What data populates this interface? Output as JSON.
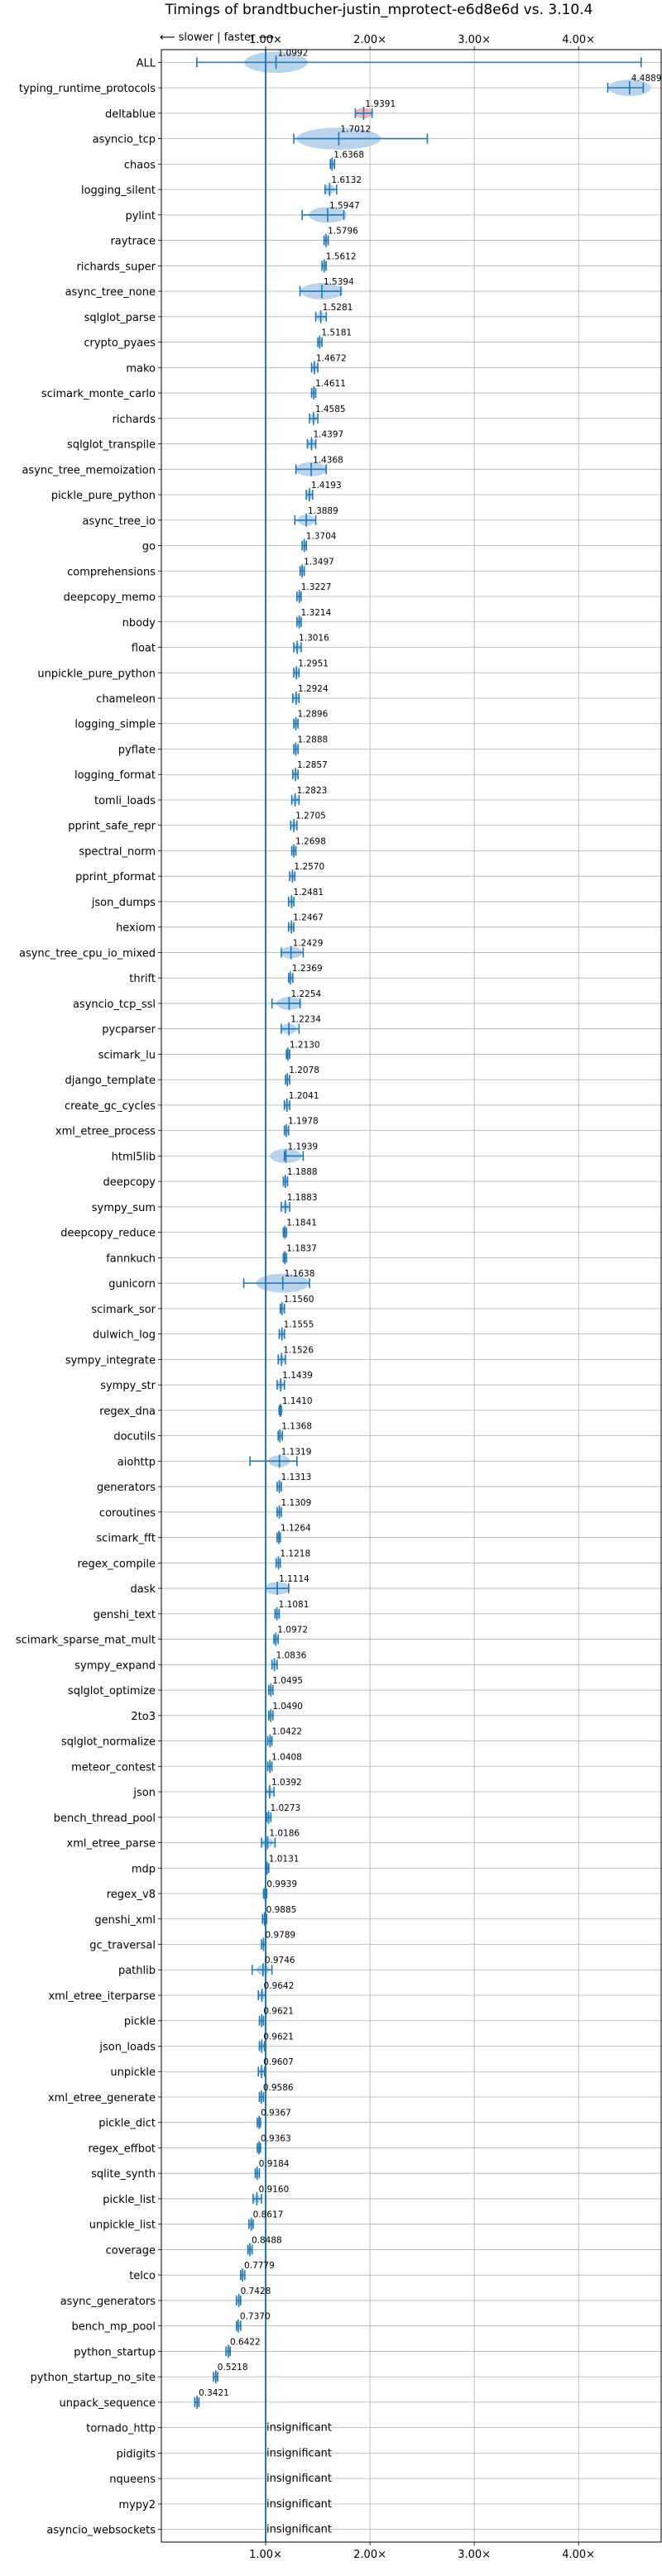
{
  "chart_data": {
    "type": "violin",
    "title": "Timings of brandtbucher-justin_mprotect-e6d8e6d vs. 3.10.4",
    "direction_note": "⟵ slower | faster ⟶",
    "xlim": [
      0.0,
      4.8
    ],
    "reference_line": 1.0,
    "grid": true,
    "x_ticks": [
      {
        "value": 1.0,
        "label": "1.00×"
      },
      {
        "value": 2.0,
        "label": "2.00×"
      },
      {
        "value": 3.0,
        "label": "3.00×"
      },
      {
        "value": 4.0,
        "label": "4.00×"
      }
    ],
    "insignificant_label": "insignificant",
    "benchmarks": [
      {
        "name": "ALL",
        "value": 1.0992,
        "label": "1.0992",
        "min": 0.34,
        "max": 4.6,
        "spread": 0.3,
        "color": "#aecde8"
      },
      {
        "name": "typing_runtime_protocols",
        "value": 4.4889,
        "label": "4.4889",
        "min": 4.28,
        "max": 4.62,
        "spread": 0.2,
        "color": "#aecde8"
      },
      {
        "name": "deltablue",
        "value": 1.9391,
        "label": "1.9391",
        "min": 1.86,
        "max": 2.02,
        "spread": 0.08,
        "color": "#f5a5a5"
      },
      {
        "name": "asyncio_tcp",
        "value": 1.7012,
        "label": "1.7012",
        "min": 1.27,
        "max": 2.55,
        "spread": 0.4,
        "color": "#aecde8"
      },
      {
        "name": "chaos",
        "value": 1.6368,
        "label": "1.6368",
        "min": 1.62,
        "max": 1.66,
        "spread": 0.02,
        "color": "#aecde8"
      },
      {
        "name": "logging_silent",
        "value": 1.6132,
        "label": "1.6132",
        "min": 1.57,
        "max": 1.68,
        "spread": 0.05,
        "color": "#aecde8"
      },
      {
        "name": "pylint",
        "value": 1.5947,
        "label": "1.5947",
        "min": 1.35,
        "max": 1.75,
        "spread": 0.18,
        "color": "#aecde8"
      },
      {
        "name": "raytrace",
        "value": 1.5796,
        "label": "1.5796",
        "min": 1.56,
        "max": 1.6,
        "spread": 0.02,
        "color": "#aecde8"
      },
      {
        "name": "richards_super",
        "value": 1.5612,
        "label": "1.5612",
        "min": 1.54,
        "max": 1.58,
        "spread": 0.02,
        "color": "#aecde8"
      },
      {
        "name": "async_tree_none",
        "value": 1.5394,
        "label": "1.5394",
        "min": 1.33,
        "max": 1.72,
        "spread": 0.2,
        "color": "#aecde8"
      },
      {
        "name": "sqlglot_parse",
        "value": 1.5281,
        "label": "1.5281",
        "min": 1.48,
        "max": 1.58,
        "spread": 0.04,
        "color": "#aecde8"
      },
      {
        "name": "crypto_pyaes",
        "value": 1.5181,
        "label": "1.5181",
        "min": 1.5,
        "max": 1.54,
        "spread": 0.02,
        "color": "#aecde8"
      },
      {
        "name": "mako",
        "value": 1.4672,
        "label": "1.4672",
        "min": 1.44,
        "max": 1.5,
        "spread": 0.03,
        "color": "#aecde8"
      },
      {
        "name": "scimark_monte_carlo",
        "value": 1.4611,
        "label": "1.4611",
        "min": 1.44,
        "max": 1.48,
        "spread": 0.02,
        "color": "#aecde8"
      },
      {
        "name": "richards",
        "value": 1.4585,
        "label": "1.4585",
        "min": 1.42,
        "max": 1.5,
        "spread": 0.03,
        "color": "#aecde8"
      },
      {
        "name": "sqlglot_transpile",
        "value": 1.4397,
        "label": "1.4397",
        "min": 1.4,
        "max": 1.48,
        "spread": 0.04,
        "color": "#aecde8"
      },
      {
        "name": "async_tree_memoization",
        "value": 1.4368,
        "label": "1.4368",
        "min": 1.29,
        "max": 1.58,
        "spread": 0.15,
        "color": "#aecde8"
      },
      {
        "name": "pickle_pure_python",
        "value": 1.4193,
        "label": "1.4193",
        "min": 1.39,
        "max": 1.45,
        "spread": 0.03,
        "color": "#aecde8"
      },
      {
        "name": "async_tree_io",
        "value": 1.3889,
        "label": "1.3889",
        "min": 1.28,
        "max": 1.48,
        "spread": 0.08,
        "color": "#aecde8"
      },
      {
        "name": "go",
        "value": 1.3704,
        "label": "1.3704",
        "min": 1.35,
        "max": 1.39,
        "spread": 0.02,
        "color": "#aecde8"
      },
      {
        "name": "comprehensions",
        "value": 1.3497,
        "label": "1.3497",
        "min": 1.33,
        "max": 1.37,
        "spread": 0.02,
        "color": "#aecde8"
      },
      {
        "name": "deepcopy_memo",
        "value": 1.3227,
        "label": "1.3227",
        "min": 1.3,
        "max": 1.34,
        "spread": 0.02,
        "color": "#aecde8"
      },
      {
        "name": "nbody",
        "value": 1.3214,
        "label": "1.3214",
        "min": 1.3,
        "max": 1.34,
        "spread": 0.02,
        "color": "#aecde8"
      },
      {
        "name": "float",
        "value": 1.3016,
        "label": "1.3016",
        "min": 1.27,
        "max": 1.34,
        "spread": 0.03,
        "color": "#aecde8"
      },
      {
        "name": "unpickle_pure_python",
        "value": 1.2951,
        "label": "1.2951",
        "min": 1.27,
        "max": 1.32,
        "spread": 0.02,
        "color": "#aecde8"
      },
      {
        "name": "chameleon",
        "value": 1.2924,
        "label": "1.2924",
        "min": 1.26,
        "max": 1.32,
        "spread": 0.03,
        "color": "#aecde8"
      },
      {
        "name": "logging_simple",
        "value": 1.2896,
        "label": "1.2896",
        "min": 1.27,
        "max": 1.31,
        "spread": 0.02,
        "color": "#aecde8"
      },
      {
        "name": "pyflate",
        "value": 1.2888,
        "label": "1.2888",
        "min": 1.27,
        "max": 1.31,
        "spread": 0.02,
        "color": "#aecde8"
      },
      {
        "name": "logging_format",
        "value": 1.2857,
        "label": "1.2857",
        "min": 1.26,
        "max": 1.31,
        "spread": 0.02,
        "color": "#aecde8"
      },
      {
        "name": "tomli_loads",
        "value": 1.2823,
        "label": "1.2823",
        "min": 1.25,
        "max": 1.32,
        "spread": 0.03,
        "color": "#aecde8"
      },
      {
        "name": "pprint_safe_repr",
        "value": 1.2705,
        "label": "1.2705",
        "min": 1.24,
        "max": 1.3,
        "spread": 0.03,
        "color": "#aecde8"
      },
      {
        "name": "spectral_norm",
        "value": 1.2698,
        "label": "1.2698",
        "min": 1.25,
        "max": 1.29,
        "spread": 0.02,
        "color": "#aecde8"
      },
      {
        "name": "pprint_pformat",
        "value": 1.257,
        "label": "1.2570",
        "min": 1.23,
        "max": 1.28,
        "spread": 0.02,
        "color": "#aecde8"
      },
      {
        "name": "json_dumps",
        "value": 1.2481,
        "label": "1.2481",
        "min": 1.22,
        "max": 1.27,
        "spread": 0.02,
        "color": "#aecde8"
      },
      {
        "name": "hexiom",
        "value": 1.2467,
        "label": "1.2467",
        "min": 1.22,
        "max": 1.27,
        "spread": 0.02,
        "color": "#aecde8"
      },
      {
        "name": "async_tree_cpu_io_mixed",
        "value": 1.2429,
        "label": "1.2429",
        "min": 1.15,
        "max": 1.36,
        "spread": 0.1,
        "color": "#aecde8"
      },
      {
        "name": "thrift",
        "value": 1.2369,
        "label": "1.2369",
        "min": 1.22,
        "max": 1.26,
        "spread": 0.02,
        "color": "#aecde8"
      },
      {
        "name": "asyncio_tcp_ssl",
        "value": 1.2254,
        "label": "1.2254",
        "min": 1.06,
        "max": 1.33,
        "spread": 0.12,
        "color": "#aecde8"
      },
      {
        "name": "pycparser",
        "value": 1.2234,
        "label": "1.2234",
        "min": 1.15,
        "max": 1.32,
        "spread": 0.07,
        "color": "#aecde8"
      },
      {
        "name": "scimark_lu",
        "value": 1.213,
        "label": "1.2130",
        "min": 1.2,
        "max": 1.23,
        "spread": 0.02,
        "color": "#aecde8"
      },
      {
        "name": "django_template",
        "value": 1.2078,
        "label": "1.2078",
        "min": 1.19,
        "max": 1.23,
        "spread": 0.02,
        "color": "#aecde8"
      },
      {
        "name": "create_gc_cycles",
        "value": 1.2041,
        "label": "1.2041",
        "min": 1.18,
        "max": 1.23,
        "spread": 0.02,
        "color": "#aecde8"
      },
      {
        "name": "xml_etree_process",
        "value": 1.1978,
        "label": "1.1978",
        "min": 1.18,
        "max": 1.22,
        "spread": 0.02,
        "color": "#aecde8"
      },
      {
        "name": "html5lib",
        "value": 1.1939,
        "label": "1.1939",
        "min": 1.18,
        "max": 1.36,
        "spread": 0.15,
        "color": "#aecde8"
      },
      {
        "name": "deepcopy",
        "value": 1.1888,
        "label": "1.1888",
        "min": 1.17,
        "max": 1.21,
        "spread": 0.02,
        "color": "#aecde8"
      },
      {
        "name": "sympy_sum",
        "value": 1.1883,
        "label": "1.1883",
        "min": 1.15,
        "max": 1.23,
        "spread": 0.03,
        "color": "#aecde8"
      },
      {
        "name": "deepcopy_reduce",
        "value": 1.1841,
        "label": "1.1841",
        "min": 1.17,
        "max": 1.2,
        "spread": 0.02,
        "color": "#aecde8"
      },
      {
        "name": "fannkuch",
        "value": 1.1837,
        "label": "1.1837",
        "min": 1.17,
        "max": 1.2,
        "spread": 0.02,
        "color": "#aecde8"
      },
      {
        "name": "gunicorn",
        "value": 1.1638,
        "label": "1.1638",
        "min": 0.79,
        "max": 1.42,
        "spread": 0.25,
        "color": "#aecde8"
      },
      {
        "name": "scimark_sor",
        "value": 1.156,
        "label": "1.1560",
        "min": 1.14,
        "max": 1.18,
        "spread": 0.02,
        "color": "#aecde8"
      },
      {
        "name": "dulwich_log",
        "value": 1.1555,
        "label": "1.1555",
        "min": 1.13,
        "max": 1.18,
        "spread": 0.02,
        "color": "#aecde8"
      },
      {
        "name": "sympy_integrate",
        "value": 1.1526,
        "label": "1.1526",
        "min": 1.12,
        "max": 1.19,
        "spread": 0.03,
        "color": "#aecde8"
      },
      {
        "name": "sympy_str",
        "value": 1.1439,
        "label": "1.1439",
        "min": 1.11,
        "max": 1.18,
        "spread": 0.03,
        "color": "#aecde8"
      },
      {
        "name": "regex_dna",
        "value": 1.141,
        "label": "1.1410",
        "min": 1.13,
        "max": 1.15,
        "spread": 0.02,
        "color": "#aecde8"
      },
      {
        "name": "docutils",
        "value": 1.1368,
        "label": "1.1368",
        "min": 1.12,
        "max": 1.16,
        "spread": 0.02,
        "color": "#aecde8"
      },
      {
        "name": "aiohttp",
        "value": 1.1319,
        "label": "1.1319",
        "min": 0.85,
        "max": 1.3,
        "spread": 0.1,
        "color": "#aecde8"
      },
      {
        "name": "generators",
        "value": 1.1313,
        "label": "1.1313",
        "min": 1.11,
        "max": 1.15,
        "spread": 0.02,
        "color": "#aecde8"
      },
      {
        "name": "coroutines",
        "value": 1.1309,
        "label": "1.1309",
        "min": 1.11,
        "max": 1.15,
        "spread": 0.02,
        "color": "#aecde8"
      },
      {
        "name": "scimark_fft",
        "value": 1.1264,
        "label": "1.1264",
        "min": 1.11,
        "max": 1.14,
        "spread": 0.02,
        "color": "#aecde8"
      },
      {
        "name": "regex_compile",
        "value": 1.1218,
        "label": "1.1218",
        "min": 1.1,
        "max": 1.14,
        "spread": 0.02,
        "color": "#aecde8"
      },
      {
        "name": "dask",
        "value": 1.1114,
        "label": "1.1114",
        "min": 1.0,
        "max": 1.22,
        "spread": 0.12,
        "color": "#aecde8"
      },
      {
        "name": "genshi_text",
        "value": 1.1081,
        "label": "1.1081",
        "min": 1.09,
        "max": 1.13,
        "spread": 0.02,
        "color": "#aecde8"
      },
      {
        "name": "scimark_sparse_mat_mult",
        "value": 1.0972,
        "label": "1.0972",
        "min": 1.08,
        "max": 1.12,
        "spread": 0.02,
        "color": "#aecde8"
      },
      {
        "name": "sympy_expand",
        "value": 1.0836,
        "label": "1.0836",
        "min": 1.06,
        "max": 1.11,
        "spread": 0.02,
        "color": "#aecde8"
      },
      {
        "name": "sqlglot_optimize",
        "value": 1.0495,
        "label": "1.0495",
        "min": 1.03,
        "max": 1.07,
        "spread": 0.02,
        "color": "#aecde8"
      },
      {
        "name": "2to3",
        "value": 1.049,
        "label": "1.0490",
        "min": 1.03,
        "max": 1.07,
        "spread": 0.02,
        "color": "#aecde8"
      },
      {
        "name": "sqlglot_normalize",
        "value": 1.0422,
        "label": "1.0422",
        "min": 1.02,
        "max": 1.06,
        "spread": 0.02,
        "color": "#aecde8"
      },
      {
        "name": "meteor_contest",
        "value": 1.0408,
        "label": "1.0408",
        "min": 1.02,
        "max": 1.06,
        "spread": 0.02,
        "color": "#aecde8"
      },
      {
        "name": "json",
        "value": 1.0392,
        "label": "1.0392",
        "min": 1.0,
        "max": 1.08,
        "spread": 0.03,
        "color": "#aecde8"
      },
      {
        "name": "bench_thread_pool",
        "value": 1.0273,
        "label": "1.0273",
        "min": 1.01,
        "max": 1.05,
        "spread": 0.02,
        "color": "#aecde8"
      },
      {
        "name": "xml_etree_parse",
        "value": 1.0186,
        "label": "1.0186",
        "min": 0.96,
        "max": 1.09,
        "spread": 0.05,
        "color": "#aecde8"
      },
      {
        "name": "mdp",
        "value": 1.0131,
        "label": "1.0131",
        "min": 1.0,
        "max": 1.03,
        "spread": 0.02,
        "color": "#aecde8"
      },
      {
        "name": "regex_v8",
        "value": 0.9939,
        "label": "0.9939",
        "min": 0.98,
        "max": 1.01,
        "spread": 0.02,
        "color": "#aecde8"
      },
      {
        "name": "genshi_xml",
        "value": 0.9885,
        "label": "0.9885",
        "min": 0.97,
        "max": 1.01,
        "spread": 0.02,
        "color": "#aecde8"
      },
      {
        "name": "gc_traversal",
        "value": 0.9789,
        "label": "0.9789",
        "min": 0.96,
        "max": 1.0,
        "spread": 0.02,
        "color": "#aecde8"
      },
      {
        "name": "pathlib",
        "value": 0.9746,
        "label": "0.9746",
        "min": 0.87,
        "max": 1.06,
        "spread": 0.06,
        "color": "#aecde8"
      },
      {
        "name": "xml_etree_iterparse",
        "value": 0.9642,
        "label": "0.9642",
        "min": 0.93,
        "max": 1.0,
        "spread": 0.03,
        "color": "#aecde8"
      },
      {
        "name": "pickle",
        "value": 0.9621,
        "label": "0.9621",
        "min": 0.94,
        "max": 0.98,
        "spread": 0.02,
        "color": "#aecde8"
      },
      {
        "name": "json_loads",
        "value": 0.9621,
        "label": "0.9621",
        "min": 0.94,
        "max": 0.99,
        "spread": 0.02,
        "color": "#aecde8"
      },
      {
        "name": "unpickle",
        "value": 0.9607,
        "label": "0.9607",
        "min": 0.93,
        "max": 0.99,
        "spread": 0.02,
        "color": "#aecde8"
      },
      {
        "name": "xml_etree_generate",
        "value": 0.9586,
        "label": "0.9586",
        "min": 0.94,
        "max": 0.98,
        "spread": 0.02,
        "color": "#aecde8"
      },
      {
        "name": "pickle_dict",
        "value": 0.9367,
        "label": "0.9367",
        "min": 0.92,
        "max": 0.95,
        "spread": 0.02,
        "color": "#aecde8"
      },
      {
        "name": "regex_effbot",
        "value": 0.9363,
        "label": "0.9363",
        "min": 0.92,
        "max": 0.95,
        "spread": 0.02,
        "color": "#aecde8"
      },
      {
        "name": "sqlite_synth",
        "value": 0.9184,
        "label": "0.9184",
        "min": 0.9,
        "max": 0.94,
        "spread": 0.02,
        "color": "#aecde8"
      },
      {
        "name": "pickle_list",
        "value": 0.916,
        "label": "0.9160",
        "min": 0.88,
        "max": 0.96,
        "spread": 0.03,
        "color": "#aecde8"
      },
      {
        "name": "unpickle_list",
        "value": 0.8617,
        "label": "0.8617",
        "min": 0.84,
        "max": 0.88,
        "spread": 0.02,
        "color": "#aecde8"
      },
      {
        "name": "coverage",
        "value": 0.8488,
        "label": "0.8488",
        "min": 0.83,
        "max": 0.87,
        "spread": 0.02,
        "color": "#aecde8"
      },
      {
        "name": "telco",
        "value": 0.7779,
        "label": "0.7779",
        "min": 0.76,
        "max": 0.8,
        "spread": 0.02,
        "color": "#aecde8"
      },
      {
        "name": "async_generators",
        "value": 0.7428,
        "label": "0.7428",
        "min": 0.72,
        "max": 0.76,
        "spread": 0.02,
        "color": "#aecde8"
      },
      {
        "name": "bench_mp_pool",
        "value": 0.737,
        "label": "0.7370",
        "min": 0.72,
        "max": 0.76,
        "spread": 0.02,
        "color": "#aecde8"
      },
      {
        "name": "python_startup",
        "value": 0.6422,
        "label": "0.6422",
        "min": 0.62,
        "max": 0.66,
        "spread": 0.02,
        "color": "#aecde8"
      },
      {
        "name": "python_startup_no_site",
        "value": 0.5218,
        "label": "0.5218",
        "min": 0.5,
        "max": 0.54,
        "spread": 0.02,
        "color": "#aecde8"
      },
      {
        "name": "unpack_sequence",
        "value": 0.3421,
        "label": "0.3421",
        "min": 0.32,
        "max": 0.36,
        "spread": 0.02,
        "color": "#aecde8"
      },
      {
        "name": "tornado_http",
        "value": null,
        "label": "insignificant"
      },
      {
        "name": "pidigits",
        "value": null,
        "label": "insignificant"
      },
      {
        "name": "nqueens",
        "value": null,
        "label": "insignificant"
      },
      {
        "name": "mypy2",
        "value": null,
        "label": "insignificant"
      },
      {
        "name": "asyncio_websockets",
        "value": null,
        "label": "insignificant"
      }
    ],
    "colors": {
      "line": "#1f77b4",
      "violin_fill": "#aecde8",
      "grid": "#b0b0b0",
      "highlight_fill": "#f5a5a5"
    }
  }
}
